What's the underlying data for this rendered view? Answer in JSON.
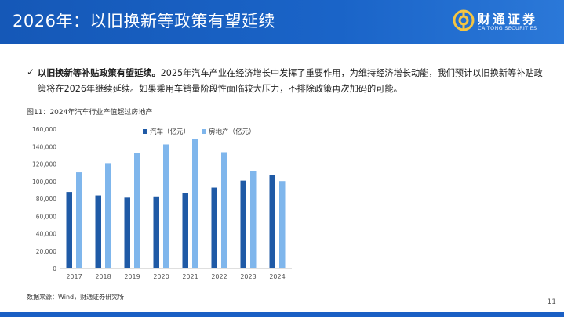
{
  "header": {
    "title": "2026年：以旧换新等政策有望延续",
    "logo_cn": "财通证券",
    "logo_en": "CAITONG SECURITIES"
  },
  "bullet": {
    "check": "✓",
    "bold": "以旧换新等补贴政策有望延续。",
    "text": "2025年汽车产业在经济增长中发挥了重要作用，为维持经济增长动能，我们预计以旧换新等补贴政策将在2026年继续延续。如果乘用车销量阶段性面临较大压力，不排除政策再次加码的可能。"
  },
  "figure_title": "图11：2024年汽车行业产值超过房地产",
  "source": "数据来源：Wind，财通证券研究所",
  "page_number": "11",
  "colors": {
    "brand": "#1a5fc4",
    "series_auto": "#1f5aa6",
    "series_realestate": "#7fb6ec",
    "axis_text": "#555555"
  },
  "chart_data": {
    "type": "bar",
    "categories": [
      "2017",
      "2018",
      "2019",
      "2020",
      "2021",
      "2022",
      "2023",
      "2024"
    ],
    "series": [
      {
        "name": "汽车（亿元）",
        "values": [
          88000,
          84000,
          81500,
          82000,
          87000,
          93000,
          101000,
          107000
        ]
      },
      {
        "name": "房地产（亿元）",
        "values": [
          110500,
          121000,
          133000,
          142500,
          148500,
          133500,
          111500,
          100500
        ]
      }
    ],
    "yticks": [
      "0",
      "20,000",
      "40,000",
      "60,000",
      "80,000",
      "100,000",
      "120,000",
      "140,000",
      "160,000"
    ],
    "ylim": [
      0,
      160000
    ],
    "grid": false,
    "legend_position": "top-center"
  }
}
